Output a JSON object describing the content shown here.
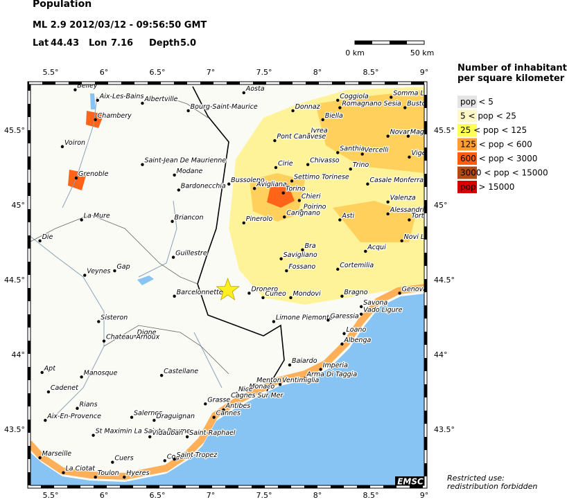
{
  "header": {
    "title": "Population",
    "event": "ML 2.9  2012/03/12 - 09:56:50 GMT",
    "lat_label": "Lat",
    "lat": "44.43",
    "lon_label": "Lon",
    "lon": "7.16",
    "depth_label": "Depth",
    "depth": "5.0"
  },
  "scale_bar": {
    "start": "0 km",
    "end": "50 km"
  },
  "map": {
    "lon_ticks": [
      {
        "value": 5.5,
        "label": "5.5°"
      },
      {
        "value": 6,
        "label": "6°"
      },
      {
        "value": 6.5,
        "label": "6.5°"
      },
      {
        "value": 7,
        "label": "7°"
      },
      {
        "value": 7.5,
        "label": "7.5°"
      },
      {
        "value": 8,
        "label": "8°"
      },
      {
        "value": 8.5,
        "label": "8.5°"
      },
      {
        "value": 9,
        "label": "9°"
      }
    ],
    "lat_ticks": [
      {
        "value": 45.5,
        "label": "45.5°"
      },
      {
        "value": 45,
        "label": "45°"
      },
      {
        "value": 44.5,
        "label": "44.5°"
      },
      {
        "value": 44,
        "label": "44°"
      },
      {
        "value": 43.5,
        "label": "43.5°"
      }
    ],
    "cities": [
      {
        "name": "Belley",
        "lon": 5.73,
        "lat": 45.77
      },
      {
        "name": "Aix-Les-Bains",
        "lon": 5.94,
        "lat": 45.7
      },
      {
        "name": "Chambery",
        "lon": 5.92,
        "lat": 45.57
      },
      {
        "name": "Albertville",
        "lon": 6.36,
        "lat": 45.68
      },
      {
        "name": "Bourg-Saint-Maurice",
        "lon": 6.79,
        "lat": 45.63
      },
      {
        "name": "Aosta",
        "lon": 7.31,
        "lat": 45.75
      },
      {
        "name": "Coggiola",
        "lon": 8.19,
        "lat": 45.7
      },
      {
        "name": "Romagnano Sesia",
        "lon": 8.21,
        "lat": 45.65
      },
      {
        "name": "Biella",
        "lon": 8.05,
        "lat": 45.57
      },
      {
        "name": "Donnaz",
        "lon": 7.77,
        "lat": 45.63
      },
      {
        "name": "Ivrea",
        "lon": 7.92,
        "lat": 45.47
      },
      {
        "name": "Somma Lombardo",
        "lon": 8.69,
        "lat": 45.72
      },
      {
        "name": "Busto",
        "lon": 8.82,
        "lat": 45.65
      },
      {
        "name": "Novara",
        "lon": 8.66,
        "lat": 45.46
      },
      {
        "name": "Magenta",
        "lon": 8.85,
        "lat": 45.46
      },
      {
        "name": "Voiron",
        "lon": 5.61,
        "lat": 45.39
      },
      {
        "name": "Grenoble",
        "lon": 5.74,
        "lat": 45.18
      },
      {
        "name": "Saint-Jean De Maurienne",
        "lon": 6.36,
        "lat": 45.27
      },
      {
        "name": "Modane",
        "lon": 6.66,
        "lat": 45.2
      },
      {
        "name": "Bardonecchia",
        "lon": 6.7,
        "lat": 45.1
      },
      {
        "name": "Bussoleno",
        "lon": 7.17,
        "lat": 45.14
      },
      {
        "name": "Avigliana",
        "lon": 7.41,
        "lat": 45.11
      },
      {
        "name": "Torino",
        "lon": 7.68,
        "lat": 45.08
      },
      {
        "name": "Chieri",
        "lon": 7.83,
        "lat": 45.03
      },
      {
        "name": "Pont Canavese",
        "lon": 7.6,
        "lat": 45.43
      },
      {
        "name": "Cirie",
        "lon": 7.61,
        "lat": 45.25
      },
      {
        "name": "Chivasso",
        "lon": 7.91,
        "lat": 45.27
      },
      {
        "name": "Settimo Torinese",
        "lon": 7.76,
        "lat": 45.16
      },
      {
        "name": "Santhia",
        "lon": 8.19,
        "lat": 45.35
      },
      {
        "name": "Vercelli",
        "lon": 8.42,
        "lat": 45.34
      },
      {
        "name": "Trino",
        "lon": 8.31,
        "lat": 45.24
      },
      {
        "name": "Vigevano",
        "lon": 8.86,
        "lat": 45.32
      },
      {
        "name": "Casale Monferrato",
        "lon": 8.47,
        "lat": 45.14
      },
      {
        "name": "Valenza",
        "lon": 8.66,
        "lat": 45.02
      },
      {
        "name": "Alessandria",
        "lon": 8.66,
        "lat": 44.94
      },
      {
        "name": "Tortona",
        "lon": 8.86,
        "lat": 44.9
      },
      {
        "name": "Asti",
        "lon": 8.21,
        "lat": 44.9
      },
      {
        "name": "Poirino",
        "lon": 7.85,
        "lat": 44.96
      },
      {
        "name": "Carignano",
        "lon": 7.69,
        "lat": 44.92
      },
      {
        "name": "Pinerolo",
        "lon": 7.31,
        "lat": 44.88
      },
      {
        "name": "Briancon",
        "lon": 6.64,
        "lat": 44.89
      },
      {
        "name": "La Mure",
        "lon": 5.79,
        "lat": 44.9
      },
      {
        "name": "Die",
        "lon": 5.4,
        "lat": 44.76
      },
      {
        "name": "Savigliano",
        "lon": 7.66,
        "lat": 44.64
      },
      {
        "name": "Bra",
        "lon": 7.86,
        "lat": 44.7
      },
      {
        "name": "Fossano",
        "lon": 7.71,
        "lat": 44.56
      },
      {
        "name": "Cortemilia",
        "lon": 8.19,
        "lat": 44.57
      },
      {
        "name": "Acqui",
        "lon": 8.45,
        "lat": 44.69
      },
      {
        "name": "Novi Ligure",
        "lon": 8.79,
        "lat": 44.76
      },
      {
        "name": "Guillestre",
        "lon": 6.65,
        "lat": 44.65
      },
      {
        "name": "Gap",
        "lon": 6.1,
        "lat": 44.56
      },
      {
        "name": "Veynes",
        "lon": 5.82,
        "lat": 44.53
      },
      {
        "name": "Barcelonnette",
        "lon": 6.66,
        "lat": 44.39
      },
      {
        "name": "Dronero",
        "lon": 7.36,
        "lat": 44.41
      },
      {
        "name": "Cuneo",
        "lon": 7.49,
        "lat": 44.38
      },
      {
        "name": "Mondovi",
        "lon": 7.75,
        "lat": 44.38
      },
      {
        "name": "Bragno",
        "lon": 8.23,
        "lat": 44.39
      },
      {
        "name": "Savona",
        "lon": 8.41,
        "lat": 44.32
      },
      {
        "name": "Vado Ligure",
        "lon": 8.41,
        "lat": 44.27
      },
      {
        "name": "Genova",
        "lon": 8.77,
        "lat": 44.41
      },
      {
        "name": "Limone Piemonte",
        "lon": 7.59,
        "lat": 44.22
      },
      {
        "name": "Garessia",
        "lon": 8.1,
        "lat": 44.23
      },
      {
        "name": "Loano",
        "lon": 8.25,
        "lat": 44.14
      },
      {
        "name": "Albenga",
        "lon": 8.23,
        "lat": 44.07
      },
      {
        "name": "Sisteron",
        "lon": 5.95,
        "lat": 44.22
      },
      {
        "name": "Digne",
        "lon": 6.29,
        "lat": 44.12
      },
      {
        "name": "Chateau-Arnoux",
        "lon": 6.0,
        "lat": 44.09
      },
      {
        "name": "Apt",
        "lon": 5.42,
        "lat": 43.88
      },
      {
        "name": "Manosque",
        "lon": 5.79,
        "lat": 43.85
      },
      {
        "name": "Castellane",
        "lon": 6.54,
        "lat": 43.86
      },
      {
        "name": "Cadenet",
        "lon": 5.48,
        "lat": 43.75
      },
      {
        "name": "Baiardo",
        "lon": 7.74,
        "lat": 43.93
      },
      {
        "name": "Imperia",
        "lon": 8.03,
        "lat": 43.9
      },
      {
        "name": "Arma Di Taggia",
        "lon": 7.88,
        "lat": 43.84
      },
      {
        "name": "Ventimiglia",
        "lon": 7.65,
        "lat": 43.8
      },
      {
        "name": "Menton",
        "lon": 7.41,
        "lat": 43.8
      },
      {
        "name": "Monaco",
        "lon": 7.34,
        "lat": 43.76
      },
      {
        "name": "Nice",
        "lon": 7.24,
        "lat": 43.74
      },
      {
        "name": "Cagnes Sur Mer",
        "lon": 7.17,
        "lat": 43.7
      },
      {
        "name": "Grasse",
        "lon": 6.95,
        "lat": 43.67
      },
      {
        "name": "Antibes",
        "lon": 7.12,
        "lat": 43.63
      },
      {
        "name": "Cannes",
        "lon": 7.03,
        "lat": 43.58
      },
      {
        "name": "Rians",
        "lon": 5.75,
        "lat": 43.64
      },
      {
        "name": "Salernes",
        "lon": 6.26,
        "lat": 43.58
      },
      {
        "name": "Draguignan",
        "lon": 6.47,
        "lat": 43.56
      },
      {
        "name": "Aix-En-Provence",
        "lon": 5.45,
        "lat": 43.56
      },
      {
        "name": "St Maximin La Sainte-Baume",
        "lon": 5.9,
        "lat": 43.46
      },
      {
        "name": "Vidauban",
        "lon": 6.43,
        "lat": 43.45
      },
      {
        "name": "Saint-Raphael",
        "lon": 6.78,
        "lat": 43.45
      },
      {
        "name": "Marseille",
        "lon": 5.4,
        "lat": 43.31
      },
      {
        "name": "Cuers",
        "lon": 6.08,
        "lat": 43.28
      },
      {
        "name": "Cogolin",
        "lon": 6.57,
        "lat": 43.29
      },
      {
        "name": "Saint-Tropez",
        "lon": 6.66,
        "lat": 43.3
      },
      {
        "name": "La Ciotat",
        "lon": 5.62,
        "lat": 43.21
      },
      {
        "name": "Toulon",
        "lon": 5.92,
        "lat": 43.18
      },
      {
        "name": "Hyeres",
        "lon": 6.19,
        "lat": 43.18
      }
    ]
  },
  "legend": {
    "title": [
      "Number of inhabitants",
      "per square kilometer"
    ],
    "entries": [
      {
        "label": "pop < 5",
        "color": "#e4e4e4"
      },
      {
        "label": "5 < pop < 25",
        "color": "#fff7c6"
      },
      {
        "label": "25 < pop < 125",
        "color": "#ffff55"
      },
      {
        "label": "125 < pop < 600",
        "color": "#ff9c33"
      },
      {
        "label": "600 < pop < 3000",
        "color": "#ff5c12"
      },
      {
        "label": "3000 < pop < 15000",
        "color": "#b34a12"
      },
      {
        "label": "pop > 15000",
        "color": "#d40000"
      }
    ]
  },
  "logo": "EMSC",
  "note": [
    "Restricted use:",
    "redistribution forbidden"
  ]
}
